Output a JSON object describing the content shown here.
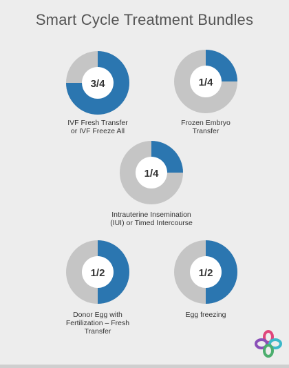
{
  "page": {
    "title": "Smart Cycle Treatment Bundles"
  },
  "colors": {
    "filled": "#2b76b0",
    "remaining": "#c5c5c5",
    "center": "#ffffff",
    "center_text": "#333333"
  },
  "bundles": [
    {
      "fraction_label": "3/4",
      "fraction": 0.75,
      "caption_lines": [
        "IVF Fresh Transfer",
        "or IVF Freeze All"
      ]
    },
    {
      "fraction_label": "1/4",
      "fraction": 0.25,
      "caption_lines": [
        "Frozen Embryo",
        "Transfer"
      ]
    },
    {
      "fraction_label": "1/4",
      "fraction": 0.25,
      "caption_lines": [
        "Intrauterine Insemination",
        "(IUI) or Timed Intercourse"
      ]
    },
    {
      "fraction_label": "1/2",
      "fraction": 0.5,
      "caption_lines": [
        "Donor Egg with",
        "Fertilization – Fresh",
        "Transfer"
      ]
    },
    {
      "fraction_label": "1/2",
      "fraction": 0.5,
      "caption_lines": [
        "Egg freezing"
      ]
    }
  ],
  "logo": {
    "name": "four-petal-logo-icon",
    "colors": [
      "#e0457b",
      "#8a4fb8",
      "#3bb8c9",
      "#4cae6e"
    ]
  }
}
